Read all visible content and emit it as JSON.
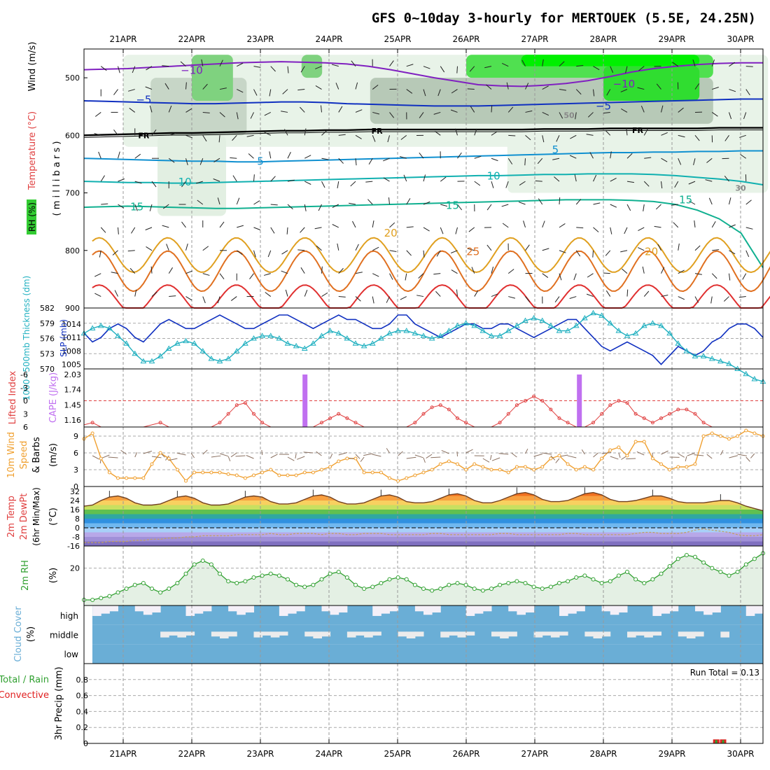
{
  "title": "GFS 0~10day 3-hourly for MERTOUEK (5.5E, 24.25N)",
  "dates": [
    "21APR",
    "22APR",
    "23APR",
    "24APR",
    "25APR",
    "26APR",
    "27APR",
    "28APR",
    "29APR",
    "30APR"
  ],
  "colors": {
    "rh_green": "#33cc33",
    "temp_purple": "#8020c0",
    "slp_blue": "#1030c0",
    "thickness_cyan": "#20b0c0",
    "lifted_red": "#e04040",
    "cape_violet": "#c070f0",
    "wind_orange": "#f0a030",
    "rh2m_green": "#30a030",
    "cloud_blue": "#6aaed6",
    "precip_red": "#e02020"
  },
  "chart_data": [
    {
      "id": "upper_air",
      "type": "heatmap",
      "ylabel_parts": [
        "RH (%)",
        "Temperature (°C)",
        "Wind (m/s)"
      ],
      "ylabel_units": "( m i l l i b a r s )",
      "yticks": [
        500,
        600,
        700,
        800,
        900
      ],
      "ylim": [
        450,
        900
      ],
      "contour_labels": [
        {
          "text": "−10",
          "day": 1.0,
          "p": 487
        },
        {
          "text": "−10",
          "day": 7.3,
          "p": 511
        },
        {
          "text": "−5",
          "day": 0.3,
          "p": 538
        },
        {
          "text": "−5",
          "day": 7.0,
          "p": 549
        },
        {
          "text": "FR",
          "day": 0.3,
          "p": 599
        },
        {
          "text": "FR",
          "day": 3.7,
          "p": 591
        },
        {
          "text": "FR",
          "day": 7.5,
          "p": 590
        },
        {
          "text": "5",
          "day": 2.0,
          "p": 645
        },
        {
          "text": "5",
          "day": 6.3,
          "p": 625
        },
        {
          "text": "10",
          "day": 0.9,
          "p": 681
        },
        {
          "text": "10",
          "day": 5.4,
          "p": 671
        },
        {
          "text": "15",
          "day": 0.2,
          "p": 724
        },
        {
          "text": "15",
          "day": 4.8,
          "p": 722
        },
        {
          "text": "15",
          "day": 8.2,
          "p": 712
        },
        {
          "text": "20",
          "day": 3.9,
          "p": 770
        },
        {
          "text": "20",
          "day": 7.7,
          "p": 802
        },
        {
          "text": "25",
          "day": 5.1,
          "p": 802
        },
        {
          "text": "50",
          "day": 6.5,
          "p": 564
        },
        {
          "text": "30",
          "day": 9.0,
          "p": 690
        }
      ],
      "isotherms": [
        {
          "level": "−10",
          "color": "#8020c0",
          "p": [
            486,
            485,
            484,
            482,
            480,
            478,
            476,
            474,
            473,
            472,
            473,
            474,
            476,
            480,
            486,
            493,
            500,
            506,
            512,
            514,
            515,
            513,
            510,
            505,
            498,
            490,
            484,
            480,
            477,
            475,
            474,
            474
          ]
        },
        {
          "level": "−5",
          "color": "#1030c0",
          "p": [
            540,
            541,
            542,
            543,
            544,
            545,
            545,
            544,
            543,
            542,
            542,
            543,
            545,
            546,
            547,
            548,
            549,
            549,
            549,
            548,
            547,
            546,
            545,
            544,
            543,
            542,
            541,
            540,
            539,
            538,
            537,
            537
          ]
        },
        {
          "level": "FR",
          "color": "#000000",
          "p": [
            600,
            599,
            598,
            597,
            596,
            596,
            595,
            594,
            593,
            592,
            592,
            591,
            591,
            590,
            590,
            590,
            590,
            590,
            590,
            590,
            590,
            589,
            589,
            589,
            588,
            588,
            588,
            588,
            588,
            587,
            587,
            587
          ]
        },
        {
          "level": "5",
          "color": "#1090d0",
          "p": [
            640,
            641,
            642,
            643,
            644,
            645,
            645,
            646,
            646,
            645,
            644,
            643,
            642,
            641,
            640,
            639,
            638,
            637,
            636,
            635,
            634,
            633,
            632,
            631,
            630,
            630,
            629,
            629,
            628,
            628,
            627,
            627
          ]
        },
        {
          "level": "10",
          "color": "#10b0b0",
          "p": [
            680,
            681,
            682,
            682,
            683,
            683,
            682,
            681,
            680,
            679,
            678,
            677,
            676,
            675,
            674,
            673,
            672,
            671,
            670,
            670,
            669,
            668,
            668,
            667,
            667,
            667,
            668,
            670,
            673,
            676,
            680,
            686
          ]
        },
        {
          "level": "15",
          "color": "#10b090",
          "p": [
            725,
            724,
            723,
            724,
            725,
            726,
            727,
            727,
            726,
            725,
            724,
            723,
            722,
            721,
            720,
            719,
            718,
            717,
            716,
            715,
            714,
            713,
            712,
            712,
            712,
            713,
            715,
            720,
            730,
            745,
            770,
            830
          ]
        }
      ],
      "diurnal_contours": [
        {
          "level": "20",
          "color": "#e0a020",
          "base": 790
        },
        {
          "level": "25",
          "color": "#e07020",
          "base": 815
        },
        {
          "level": "30",
          "color": "#e03030",
          "base": 870
        }
      ]
    },
    {
      "id": "slp_thickness",
      "type": "line",
      "ylabel_left": "1000−500mb Thickness (dm)",
      "ylabel_right": "SLP (mb)",
      "yticks_left": [
        570,
        573,
        576,
        579,
        582
      ],
      "yticks_right": [
        1005,
        1008,
        1011,
        1014
      ],
      "series": [
        {
          "name": "SLP",
          "values": [
            1012,
            1010,
            1011,
            1013,
            1014,
            1013,
            1011,
            1010,
            1012,
            1014,
            1015,
            1014,
            1013,
            1013,
            1014,
            1015,
            1016,
            1015,
            1014,
            1013,
            1013,
            1014,
            1015,
            1016,
            1016,
            1015,
            1014,
            1013,
            1014,
            1015,
            1016,
            1015,
            1015,
            1014,
            1013,
            1013,
            1014,
            1016,
            1016,
            1014,
            1013,
            1012,
            1011,
            1012,
            1013,
            1014,
            1014,
            1013,
            1013,
            1014,
            1014,
            1013,
            1012,
            1011,
            1012,
            1013,
            1014,
            1015,
            1015,
            1013,
            1011,
            1009,
            1008,
            1009,
            1010,
            1009,
            1008,
            1007,
            1005,
            1007,
            1009,
            1008,
            1007,
            1008,
            1010,
            1011,
            1013,
            1014,
            1014,
            1013,
            1011
          ]
        },
        {
          "name": "Thickness",
          "values": [
            577.0,
            578.0,
            578.5,
            578.0,
            576.5,
            575.0,
            573.0,
            571.5,
            571.5,
            572.5,
            574.0,
            575.0,
            575.5,
            575.0,
            573.5,
            572.0,
            571.5,
            572.0,
            573.5,
            575.0,
            576.0,
            576.5,
            576.5,
            576.0,
            575.0,
            574.5,
            574.0,
            575.0,
            576.5,
            577.5,
            577.0,
            576.0,
            575.0,
            574.5,
            575.0,
            576.0,
            577.0,
            577.5,
            577.5,
            577.0,
            576.5,
            576.0,
            576.5,
            577.5,
            578.5,
            579.0,
            578.5,
            577.5,
            576.5,
            576.5,
            577.5,
            578.5,
            579.5,
            580.0,
            579.5,
            578.5,
            577.5,
            577.5,
            578.5,
            580.0,
            581.0,
            580.5,
            579.0,
            577.5,
            576.5,
            577.0,
            578.5,
            579.0,
            578.5,
            577.0,
            575.0,
            573.5,
            572.5,
            572.5,
            572.0,
            571.5,
            571.0,
            570.0,
            569.0,
            568.0,
            567.5
          ]
        }
      ]
    },
    {
      "id": "cape_li",
      "type": "line",
      "ylabel_left": "Lifted Index",
      "ylabel_right": "CAPE (J/kg)",
      "yticks_left": [
        -6,
        -3,
        0,
        3,
        6
      ],
      "yticks_right": [
        1.16,
        1.45,
        1.74,
        2.03
      ],
      "cape_bars": [
        {
          "day": 2.65,
          "value": 2.03
        },
        {
          "day": 6.65,
          "value": 2.03
        }
      ],
      "series": [
        {
          "name": "Lifted Index",
          "values": [
            5.5,
            5,
            6,
            6,
            6,
            6,
            6,
            6,
            5.5,
            5,
            6,
            6,
            6,
            6,
            6,
            6,
            5,
            3,
            1,
            0.5,
            3,
            5,
            6,
            6,
            6,
            6,
            6,
            6,
            5,
            4,
            3,
            4,
            5,
            6,
            6,
            6,
            6,
            6,
            6,
            5,
            3,
            1.5,
            1,
            2,
            4,
            5,
            6,
            6,
            6,
            5,
            3,
            1,
            0,
            -1,
            0,
            2,
            4,
            5,
            6,
            6,
            5,
            3,
            1,
            0,
            0.5,
            3,
            4,
            5,
            4,
            3,
            2,
            2,
            3,
            5,
            6,
            6,
            6,
            6,
            6,
            6,
            6
          ]
        }
      ]
    },
    {
      "id": "wind10m",
      "type": "line",
      "ylabel": "10m Wind Speed (m/s) & Barbs",
      "yticks": [
        0,
        3,
        6,
        9
      ],
      "series": [
        {
          "name": "10m Wind Speed",
          "values": [
            8.5,
            9.5,
            5,
            2.5,
            1.5,
            1.5,
            1.5,
            1.5,
            4,
            6,
            5,
            3,
            1,
            2.5,
            2.5,
            2.5,
            2.5,
            2.2,
            2,
            1.5,
            2,
            2.5,
            3,
            2,
            2,
            2,
            2.5,
            2.5,
            3,
            3.5,
            4.5,
            5,
            5,
            2.5,
            2.5,
            2.5,
            1.5,
            1,
            1.5,
            2,
            2.5,
            3,
            4,
            4.5,
            4,
            3,
            4,
            3.5,
            3,
            3,
            2.5,
            3.5,
            3.5,
            3,
            3.5,
            5,
            5.5,
            4,
            3,
            3.5,
            3,
            5,
            6.5,
            7,
            5.5,
            8,
            8,
            5,
            4,
            3,
            3.5,
            3.5,
            4,
            9,
            9.5,
            9,
            8.5,
            9,
            10,
            9.5,
            9
          ]
        }
      ]
    },
    {
      "id": "temp2m",
      "type": "area",
      "ylabel": "2m Temp 2m DewPt (6hr Min/Max) (°C)",
      "yticks": [
        -16,
        -8,
        0,
        8,
        16,
        24,
        32
      ],
      "series": [
        {
          "name": "2m Temp",
          "values": [
            19,
            20,
            24,
            27,
            28,
            26,
            22,
            20,
            20,
            21,
            24,
            27,
            28,
            26,
            22,
            20,
            20,
            21,
            24,
            27,
            28,
            27,
            23,
            21,
            21,
            22,
            25,
            28,
            29,
            27,
            23,
            21,
            21,
            22,
            25,
            28,
            29,
            27,
            23,
            22,
            22,
            23,
            26,
            29,
            30,
            28,
            24,
            22,
            22,
            24,
            27,
            30,
            31,
            29,
            25,
            23,
            23,
            24,
            27,
            30,
            31,
            29,
            25,
            23,
            23,
            24,
            26,
            28,
            28,
            26,
            23,
            22,
            22,
            22,
            23,
            24,
            24,
            22,
            19,
            17,
            15
          ]
        },
        {
          "name": "2m DewPt",
          "values": [
            -13,
            -13,
            -13,
            -12,
            -12,
            -12,
            -11,
            -11,
            -10,
            -10,
            -9,
            -9,
            -8,
            -8,
            -7,
            -7,
            -7,
            -7,
            -6,
            -6,
            -6,
            -6,
            -5,
            -6,
            -6,
            -5,
            -5,
            -5,
            -6,
            -5,
            -5,
            -6,
            -6,
            -5,
            -5,
            -5,
            -6,
            -6,
            -6,
            -6,
            -6,
            -5,
            -5,
            -6,
            -6,
            -6,
            -6,
            -6,
            -6,
            -5,
            -5,
            -6,
            -6,
            -6,
            -6,
            -6,
            -6,
            -5,
            -5,
            -6,
            -6,
            -6,
            -6,
            -6,
            -6,
            -5,
            -4,
            -4,
            -5,
            -5,
            -5,
            -4,
            -2,
            -1,
            -2,
            -3,
            -4,
            -6,
            -7,
            -7,
            -6
          ]
        }
      ]
    },
    {
      "id": "rh2m",
      "type": "area",
      "ylabel": "2m RH (%)",
      "yticks": [
        20
      ],
      "series": [
        {
          "name": "2m RH",
          "values": [
            3,
            3,
            4,
            5,
            7,
            9,
            11,
            12,
            9,
            7,
            9,
            12,
            17,
            22,
            24,
            22,
            17,
            13,
            12,
            13,
            15,
            16,
            17,
            16,
            14,
            11,
            10,
            11,
            14,
            17,
            18,
            15,
            11,
            9,
            10,
            12,
            14,
            15,
            14,
            11,
            9,
            8,
            9,
            11,
            12,
            11,
            9,
            8,
            9,
            11,
            12,
            13,
            12,
            10,
            9,
            10,
            12,
            13,
            15,
            16,
            14,
            12,
            13,
            16,
            18,
            14,
            12,
            14,
            17,
            21,
            25,
            27,
            26,
            23,
            20,
            18,
            16,
            18,
            22,
            25,
            28
          ]
        }
      ]
    },
    {
      "id": "cloud",
      "type": "bar",
      "ylabel": "Cloud Cover (%)",
      "categories": [
        "high",
        "middle",
        "low"
      ]
    },
    {
      "id": "precip",
      "type": "bar",
      "ylabel_left": "Total / Rain",
      "ylabel_left2": "Convective",
      "ylabel": "3hr Precip (mm)",
      "yticks": [
        0,
        0.2,
        0.4,
        0.6,
        0.8
      ],
      "ylim": [
        0,
        1.0
      ],
      "run_total": "Run Total = 0.13",
      "bars": [
        {
          "day": 8.65,
          "value": 0.05
        },
        {
          "day": 8.75,
          "value": 0.05
        }
      ]
    }
  ]
}
